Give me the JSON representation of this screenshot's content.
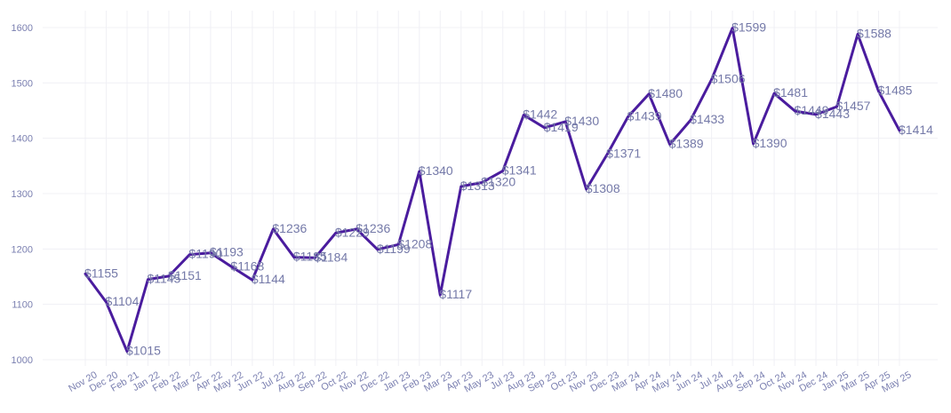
{
  "chart_data": {
    "type": "line",
    "title": "",
    "xlabel": "",
    "ylabel": "",
    "ylim": [
      1000,
      1600
    ],
    "yticks": [
      1000,
      1100,
      1200,
      1300,
      1400,
      1500,
      1600
    ],
    "grid": true,
    "categories": [
      "Nov 20",
      "Dec 20",
      "Feb 21",
      "Jan 22",
      "Feb 22",
      "Mar 22",
      "Apr 22",
      "May 22",
      "Jun 22",
      "Jul 22",
      "Aug 22",
      "Sep 22",
      "Oct 22",
      "Nov 22",
      "Dec 22",
      "Jan 23",
      "Feb 23",
      "Mar 23",
      "Apr 23",
      "May 23",
      "Jul 23",
      "Aug 23",
      "Sep 23",
      "Oct 23",
      "Nov 23",
      "Dec 23",
      "Mar 24",
      "Apr 24",
      "May 24",
      "Jun 24",
      "Jul 24",
      "Aug 24",
      "Sep 24",
      "Oct 24",
      "Nov 24",
      "Dec 24",
      "Jan 25",
      "Mar 25",
      "Apr 25",
      "May 25"
    ],
    "series": [
      {
        "color": "#4a1c9e",
        "values": [
          1155,
          1104,
          1015,
          1145,
          1151,
          1190,
          1193,
          1168,
          1144,
          1236,
          1185,
          1184,
          1229,
          1236,
          1199,
          1208,
          1340,
          1117,
          1313,
          1320,
          1341,
          1442,
          1419,
          1430,
          1308,
          1371,
          1439,
          1480,
          1389,
          1433,
          1506,
          1599,
          1390,
          1481,
          1449,
          1443,
          1457,
          1588,
          1485,
          1414
        ],
        "labels": [
          "$1155",
          "$1104",
          "$1015",
          "$1145",
          "$1151",
          "$1190",
          "$1193",
          "$1168",
          "$1144",
          "$1236",
          "$1185",
          "$1184",
          "$1229",
          "$1236",
          "$1199",
          "$1208",
          "$1340",
          "$1117",
          "$1313",
          "$1320",
          "$1341",
          "$1442",
          "$1419",
          "$1430",
          "$1308",
          "$1371",
          "$1439",
          "$1480",
          "$1389",
          "$1433",
          "$1506",
          "$1599",
          "$1390",
          "$1481",
          "$1449",
          "$1443",
          "$1457",
          "$1588",
          "$1485",
          "$1414"
        ]
      }
    ]
  }
}
